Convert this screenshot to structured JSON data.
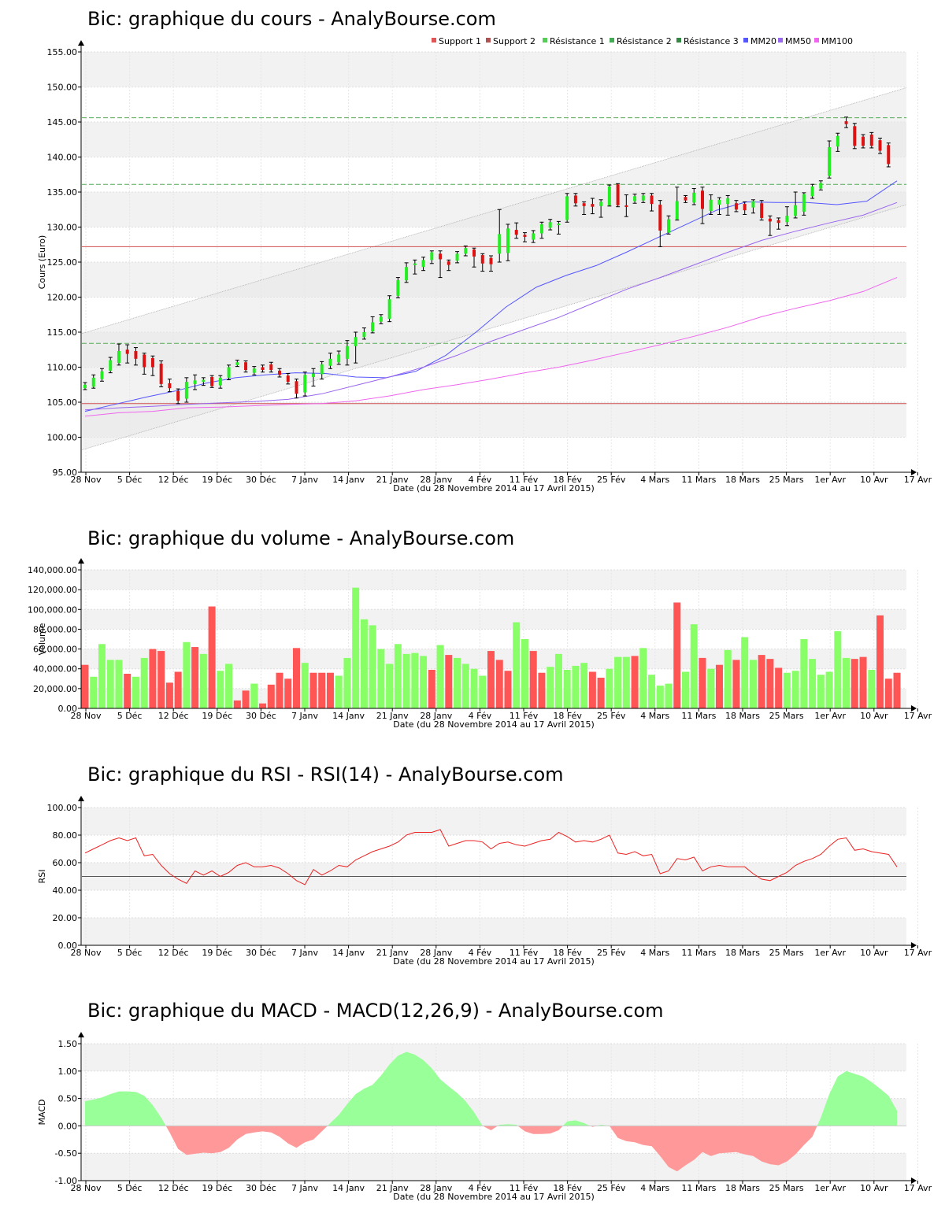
{
  "chart_data": [
    {
      "type": "candlestick",
      "title": "Bic: graphique du cours - AnalyBourse.com",
      "xlabel": "Date (du 28 Novembre 2014 au 17 Avril 2015)",
      "ylabel": "Cours (Euro)",
      "ylim": [
        95,
        155
      ],
      "yticks": [
        "155.00",
        "150.00",
        "145.00",
        "140.00",
        "135.00",
        "130.00",
        "125.00",
        "120.00",
        "115.00",
        "110.00",
        "105.00",
        "100.00",
        "95.00"
      ],
      "xticks": [
        "28 Nov",
        "5 Déc",
        "12 Déc",
        "19 Déc",
        "30 Déc",
        "7 Janv",
        "14 Janv",
        "21 Janv",
        "28 Janv",
        "4 Fév",
        "11 Fév",
        "18 Fév",
        "25 Fév",
        "4 Mars",
        "11 Mars",
        "18 Mars",
        "25 Mars",
        "1er Avr",
        "10 Avr",
        "17 Avr"
      ],
      "legend": [
        {
          "name": "Support 1",
          "color": "#e05555"
        },
        {
          "name": "Support 2",
          "color": "#b05050"
        },
        {
          "name": "Résistance 1",
          "color": "#55cc55"
        },
        {
          "name": "Résistance 2",
          "color": "#44aa55"
        },
        {
          "name": "Résistance 3",
          "color": "#338844"
        },
        {
          "name": "MM20",
          "color": "#5555ff"
        },
        {
          "name": "MM50",
          "color": "#9966ee"
        },
        {
          "name": "MM100",
          "color": "#ee66ee"
        }
      ],
      "levels": {
        "support_1": 104.8,
        "support_2": 127.2,
        "resistance_1": 113.4,
        "resistance_2": 136.1,
        "resistance_3": 145.6
      },
      "trend_channel": {
        "upper": [
          114.8,
          149.9
        ],
        "lower": [
          98.2,
          133.2
        ]
      },
      "candles": [
        [
          107.0,
          107.5,
          107.8,
          106.8
        ],
        [
          107.2,
          108.5,
          108.9,
          107.0
        ],
        [
          108.3,
          109.4,
          109.8,
          108.0
        ],
        [
          109.5,
          111.0,
          111.4,
          109.2
        ],
        [
          110.6,
          112.3,
          113.3,
          110.3
        ],
        [
          112.5,
          111.9,
          113.2,
          110.6
        ],
        [
          112.3,
          111.2,
          112.8,
          110.3
        ],
        [
          111.8,
          110.0,
          112.0,
          109.0
        ],
        [
          111.3,
          110.0,
          111.6,
          108.8
        ],
        [
          110.5,
          107.6,
          110.9,
          107.2
        ],
        [
          107.7,
          107.0,
          108.3,
          106.5
        ],
        [
          106.6,
          105.2,
          106.9,
          104.8
        ],
        [
          105.5,
          107.9,
          108.5,
          105.0
        ],
        [
          107.6,
          108.1,
          108.9,
          106.8
        ],
        [
          107.9,
          108.2,
          108.5,
          107.4
        ],
        [
          108.6,
          107.3,
          108.8,
          107.1
        ],
        [
          107.4,
          108.5,
          108.8,
          107.0
        ],
        [
          108.5,
          110.0,
          110.3,
          108.2
        ],
        [
          110.3,
          110.7,
          111.0,
          110.1
        ],
        [
          110.7,
          109.6,
          110.9,
          109.3
        ],
        [
          109.2,
          109.8,
          110.1,
          108.9
        ],
        [
          110.0,
          109.6,
          110.3,
          109.3
        ],
        [
          110.4,
          109.6,
          110.7,
          109.3
        ],
        [
          109.5,
          108.9,
          109.8,
          108.6
        ],
        [
          108.8,
          107.9,
          109.1,
          107.6
        ],
        [
          108.0,
          106.2,
          108.3,
          105.6
        ],
        [
          106.4,
          108.9,
          109.3,
          105.9
        ],
        [
          108.6,
          109.1,
          109.8,
          107.3
        ],
        [
          109.0,
          110.4,
          110.8,
          108.3
        ],
        [
          110.2,
          111.2,
          112.0,
          109.8
        ],
        [
          110.7,
          111.8,
          112.3,
          110.4
        ],
        [
          111.2,
          113.0,
          113.8,
          110.3
        ],
        [
          113.0,
          114.3,
          115.0,
          110.6
        ],
        [
          114.3,
          115.0,
          115.6,
          114.0
        ],
        [
          115.1,
          116.4,
          117.2,
          114.9
        ],
        [
          116.5,
          117.2,
          117.5,
          116.2
        ],
        [
          116.9,
          119.7,
          120.2,
          116.5
        ],
        [
          120.2,
          122.4,
          122.8,
          119.9
        ],
        [
          122.4,
          124.3,
          124.9,
          122.1
        ],
        [
          124.6,
          124.8,
          125.3,
          123.3
        ],
        [
          124.3,
          125.3,
          125.7,
          123.8
        ],
        [
          125.3,
          126.4,
          126.6,
          124.8
        ],
        [
          126.2,
          125.4,
          126.6,
          122.8
        ],
        [
          125.1,
          124.6,
          125.3,
          123.8
        ],
        [
          125.2,
          126.2,
          126.5,
          124.9
        ],
        [
          126.2,
          127.0,
          127.3,
          125.9
        ],
        [
          126.8,
          125.8,
          127.0,
          124.3
        ],
        [
          126.0,
          124.8,
          126.2,
          123.7
        ],
        [
          125.6,
          124.7,
          125.9,
          123.7
        ],
        [
          126.2,
          129.0,
          132.5,
          125.0
        ],
        [
          126.3,
          129.8,
          130.4,
          125.2
        ],
        [
          129.6,
          128.9,
          130.6,
          128.4
        ],
        [
          128.9,
          128.6,
          129.2,
          127.9
        ],
        [
          128.2,
          129.1,
          129.5,
          127.8
        ],
        [
          129.1,
          130.4,
          130.7,
          128.4
        ],
        [
          129.9,
          130.7,
          131.1,
          129.6
        ],
        [
          130.3,
          130.5,
          130.8,
          129.0
        ],
        [
          131.0,
          134.4,
          134.8,
          130.7
        ],
        [
          134.5,
          133.4,
          134.8,
          133.0
        ],
        [
          133.4,
          133.0,
          133.6,
          131.8
        ],
        [
          133.3,
          132.9,
          134.1,
          131.9
        ],
        [
          133.0,
          133.6,
          133.9,
          131.4
        ],
        [
          133.1,
          135.8,
          136.0,
          133.0
        ],
        [
          136.1,
          133.1,
          136.2,
          132.9
        ],
        [
          133.1,
          132.9,
          134.6,
          131.5
        ],
        [
          133.7,
          134.4,
          134.7,
          133.4
        ],
        [
          133.8,
          134.5,
          134.8,
          133.5
        ],
        [
          134.5,
          133.3,
          134.8,
          132.3
        ],
        [
          133.2,
          129.5,
          133.8,
          127.2
        ],
        [
          129.2,
          131.1,
          131.6,
          129.0
        ],
        [
          131.1,
          133.7,
          135.7,
          131.0
        ],
        [
          134.3,
          133.8,
          134.5,
          133.5
        ],
        [
          133.5,
          134.9,
          135.5,
          133.2
        ],
        [
          135.2,
          132.6,
          135.7,
          130.5
        ],
        [
          132.3,
          133.9,
          134.6,
          131.8
        ],
        [
          133.2,
          133.9,
          134.2,
          131.8
        ],
        [
          133.3,
          134.1,
          134.5,
          131.7
        ],
        [
          133.4,
          132.5,
          133.8,
          132.2
        ],
        [
          133.3,
          132.4,
          133.6,
          131.8
        ],
        [
          132.8,
          133.7,
          133.9,
          132.0
        ],
        [
          133.4,
          131.3,
          133.8,
          131.0
        ],
        [
          131.2,
          130.8,
          131.6,
          128.8
        ],
        [
          131.0,
          130.6,
          131.3,
          129.7
        ],
        [
          130.7,
          131.6,
          132.9,
          130.2
        ],
        [
          131.6,
          133.1,
          135.0,
          131.3
        ],
        [
          132.2,
          134.7,
          134.9,
          131.7
        ],
        [
          134.4,
          135.8,
          136.1,
          134.1
        ],
        [
          135.5,
          136.3,
          136.6,
          135.3
        ],
        [
          137.3,
          141.4,
          142.3,
          137.0
        ],
        [
          141.5,
          143.0,
          143.4,
          140.8
        ],
        [
          145.1,
          144.7,
          145.7,
          144.2
        ],
        [
          144.4,
          141.6,
          144.8,
          141.2
        ],
        [
          142.9,
          141.6,
          143.2,
          141.3
        ],
        [
          143.2,
          141.6,
          143.5,
          141.3
        ],
        [
          142.4,
          140.9,
          142.7,
          140.5
        ],
        [
          141.7,
          139.0,
          142.0,
          138.6
        ]
      ],
      "series": [
        {
          "name": "MM20",
          "values": [
            103.7,
            104.7,
            105.7,
            106.6,
            107.7,
            108.5,
            108.9,
            109.2,
            109.1,
            108.6,
            108.5,
            109.4,
            111.7,
            115.0,
            118.6,
            121.4,
            123.1,
            124.5,
            126.4,
            128.4,
            130.4,
            132.4,
            133.6,
            133.5,
            133.5,
            133.2,
            133.7,
            136.6
          ]
        },
        {
          "name": "MM50",
          "values": [
            103.9,
            104.2,
            104.4,
            104.7,
            104.9,
            105.1,
            105.4,
            106.2,
            107.4,
            108.6,
            110.0,
            111.7,
            113.7,
            115.4,
            117.1,
            119.1,
            121.1,
            122.8,
            124.6,
            126.4,
            128.1,
            129.4,
            130.6,
            131.7,
            133.5
          ]
        },
        {
          "name": "MM100",
          "values": [
            103.0,
            103.5,
            103.7,
            104.2,
            104.3,
            104.5,
            104.7,
            104.8,
            105.2,
            105.9,
            106.8,
            107.5,
            108.3,
            109.2,
            110.0,
            111.0,
            112.1,
            113.2,
            114.4,
            115.7,
            117.2,
            118.4,
            119.5,
            120.8,
            122.8
          ]
        }
      ]
    },
    {
      "type": "bar",
      "title": "Bic: graphique du volume - AnalyBourse.com",
      "xlabel": "Date (du 28 Novembre 2014 au 17 Avril 2015)",
      "ylabel": "Volume",
      "ylim": [
        0,
        140000
      ],
      "yticks": [
        "140,000.00",
        "120,000.00",
        "100,000.00",
        "80,000.00",
        "60,000.00",
        "40,000.00",
        "20,000.00",
        "0.00"
      ],
      "xticks": [
        "28 Nov",
        "5 Déc",
        "12 Déc",
        "19 Déc",
        "30 Déc",
        "7 Janv",
        "14 Janv",
        "21 Janv",
        "28 Janv",
        "4 Fév",
        "11 Fév",
        "18 Fév",
        "25 Fév",
        "4 Mars",
        "11 Mars",
        "18 Mars",
        "25 Mars",
        "1er Avr",
        "10 Avr",
        "17 Avr"
      ],
      "values": [
        44000,
        32000,
        65000,
        49000,
        49000,
        35000,
        32000,
        51000,
        60000,
        58000,
        26000,
        37000,
        67000,
        62000,
        55000,
        103000,
        38000,
        45000,
        8000,
        18000,
        25000,
        5000,
        24000,
        36000,
        30000,
        61000,
        46000,
        36000,
        36000,
        36000,
        33000,
        51000,
        122000,
        90000,
        84000,
        60000,
        45000,
        65000,
        55000,
        56000,
        53000,
        39000,
        64000,
        54000,
        51000,
        45000,
        40000,
        33000,
        58000,
        49000,
        38000,
        87000,
        70000,
        58000,
        36000,
        42000,
        55000,
        39000,
        43000,
        46000,
        37000,
        31000,
        40000,
        52000,
        52000,
        53000,
        61000,
        34000,
        23000,
        25000,
        107000,
        37000,
        85000,
        51000,
        40000,
        44000,
        59000,
        49000,
        72000,
        49000,
        54000,
        50000,
        41000,
        36000,
        38000,
        70000,
        50000,
        34000,
        37000,
        78000,
        51000,
        50000,
        52000,
        39000,
        94000,
        30000,
        36000
      ],
      "up": [
        0,
        1,
        1,
        1,
        1,
        0,
        1,
        1,
        0,
        0,
        0,
        0,
        1,
        0,
        1,
        0,
        1,
        1,
        0,
        0,
        1,
        0,
        0,
        0,
        0,
        0,
        1,
        0,
        0,
        0,
        1,
        1,
        1,
        1,
        1,
        1,
        1,
        1,
        1,
        1,
        1,
        0,
        1,
        0,
        1,
        1,
        1,
        1,
        0,
        0,
        0,
        1,
        1,
        0,
        0,
        1,
        1,
        1,
        1,
        1,
        0,
        0,
        1,
        1,
        1,
        0,
        1,
        1,
        1,
        1,
        0,
        1,
        1,
        0,
        1,
        0,
        1,
        0,
        1,
        1,
        0,
        0,
        0,
        1,
        1,
        1,
        1,
        1,
        1,
        1,
        1,
        0,
        0,
        1,
        0,
        0,
        0
      ]
    },
    {
      "type": "line",
      "title": "Bic: graphique du RSI - RSI(14) - AnalyBourse.com",
      "xlabel": "Date (du 28 Novembre 2014 au 17 Avril 2015)",
      "ylabel": "RSI",
      "ylim": [
        0,
        100
      ],
      "yticks": [
        "100.00",
        "80.00",
        "60.00",
        "40.00",
        "20.00",
        "0.00"
      ],
      "xticks": [
        "28 Nov",
        "5 Déc",
        "12 Déc",
        "19 Déc",
        "30 Déc",
        "7 Janv",
        "14 Janv",
        "21 Janv",
        "28 Janv",
        "4 Fév",
        "11 Fév",
        "18 Fév",
        "25 Fév",
        "4 Mars",
        "11 Mars",
        "18 Mars",
        "25 Mars",
        "1er Avr",
        "10 Avr",
        "17 Avr"
      ],
      "reference": 50,
      "values": [
        67,
        70,
        73,
        76,
        78,
        76,
        78,
        65,
        66,
        58,
        52,
        48,
        45,
        54,
        51,
        54,
        50,
        53,
        58,
        60,
        57,
        57,
        58,
        56,
        52,
        47,
        44,
        55,
        51,
        54,
        58,
        57,
        62,
        65,
        68,
        70,
        72,
        75,
        80,
        82,
        82,
        82,
        84,
        72,
        74,
        76,
        76,
        75,
        70,
        74,
        75,
        73,
        72,
        74,
        76,
        77,
        82,
        79,
        75,
        76,
        75,
        77,
        80,
        67,
        66,
        68,
        65,
        66,
        52,
        54,
        63,
        62,
        64,
        54,
        57,
        58,
        57,
        57,
        57,
        52,
        48,
        47,
        50,
        53,
        58,
        61,
        63,
        66,
        72,
        77,
        78,
        69,
        70,
        68,
        67,
        66,
        57
      ]
    },
    {
      "type": "area",
      "title": "Bic: graphique du MACD - MACD(12,26,9) - AnalyBourse.com",
      "xlabel": "Date (du 28 Novembre 2014 au 17 Avril 2015)",
      "ylabel": "MACD",
      "ylim": [
        -1.0,
        1.5
      ],
      "yticks": [
        "1.50",
        "1.00",
        "0.50",
        "0.00",
        "-0.50",
        "-1.00"
      ],
      "xticks": [
        "28 Nov",
        "5 Déc",
        "12 Déc",
        "19 Déc",
        "30 Déc",
        "7 Janv",
        "14 Janv",
        "21 Janv",
        "28 Janv",
        "4 Fév",
        "11 Fév",
        "18 Fév",
        "25 Fév",
        "4 Mars",
        "11 Mars",
        "18 Mars",
        "25 Mars",
        "1er Avr",
        "10 Avr",
        "17 Avr"
      ],
      "values": [
        0.45,
        0.48,
        0.52,
        0.58,
        0.63,
        0.63,
        0.62,
        0.55,
        0.38,
        0.15,
        -0.12,
        -0.42,
        -0.53,
        -0.51,
        -0.49,
        -0.5,
        -0.48,
        -0.4,
        -0.25,
        -0.15,
        -0.12,
        -0.1,
        -0.12,
        -0.2,
        -0.32,
        -0.4,
        -0.3,
        -0.25,
        -0.1,
        0.05,
        0.2,
        0.4,
        0.58,
        0.68,
        0.75,
        0.92,
        1.12,
        1.28,
        1.35,
        1.3,
        1.2,
        1.05,
        0.85,
        0.72,
        0.6,
        0.45,
        0.25,
        0.0,
        -0.08,
        0.02,
        0.03,
        0.02,
        -0.1,
        -0.15,
        -0.15,
        -0.14,
        -0.08,
        0.08,
        0.1,
        0.05,
        -0.02,
        0.02,
        0.0,
        -0.22,
        -0.28,
        -0.3,
        -0.35,
        -0.37,
        -0.55,
        -0.75,
        -0.83,
        -0.72,
        -0.62,
        -0.48,
        -0.55,
        -0.5,
        -0.49,
        -0.48,
        -0.52,
        -0.55,
        -0.65,
        -0.7,
        -0.72,
        -0.65,
        -0.52,
        -0.35,
        -0.2,
        0.15,
        0.58,
        0.9,
        1.0,
        0.95,
        0.9,
        0.8,
        0.68,
        0.55,
        0.28
      ]
    }
  ]
}
